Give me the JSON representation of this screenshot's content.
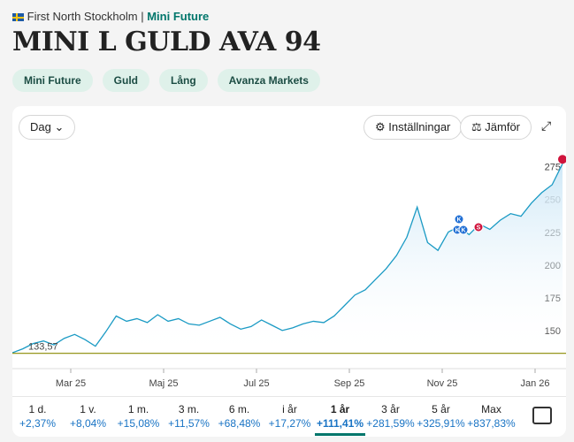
{
  "header": {
    "exchange": "First North Stockholm",
    "category": "Mini Future"
  },
  "title": "MINI L GULD AVA 94",
  "tags": [
    "Mini Future",
    "Guld",
    "Lång",
    "Avanza Markets"
  ],
  "toolbar": {
    "period": "Dag",
    "settings": "Inställningar",
    "compare": "Jämför"
  },
  "chart_data": {
    "type": "line",
    "color": "#1a9ac4",
    "values": [
      134,
      137,
      141,
      143,
      140,
      145,
      148,
      144,
      139,
      150,
      162,
      158,
      160,
      157,
      163,
      158,
      160,
      156,
      155,
      158,
      161,
      156,
      152,
      154,
      159,
      155,
      151,
      153,
      156,
      158,
      157,
      162,
      170,
      178,
      182,
      190,
      198,
      208,
      222,
      245,
      218,
      212,
      226,
      230,
      224,
      232,
      228,
      235,
      240,
      238,
      248,
      256,
      262,
      278
    ],
    "ylim": [
      130,
      295
    ],
    "yticks": [
      150,
      175,
      200,
      225,
      250,
      275
    ],
    "xtick_labels": [
      "Mar 25",
      "Maj 25",
      "Jul 25",
      "Sep 25",
      "Nov 25",
      "Jan 26"
    ],
    "baseline": {
      "value": 133.57,
      "label": "133,57"
    },
    "trade_markers": [
      "K",
      "K",
      "K",
      "S"
    ]
  },
  "periods": [
    {
      "label": "1 d.",
      "change": "+2,37%"
    },
    {
      "label": "1 v.",
      "change": "+8,04%"
    },
    {
      "label": "1 m.",
      "change": "+15,08%"
    },
    {
      "label": "3 m.",
      "change": "+11,57%"
    },
    {
      "label": "6 m.",
      "change": "+68,48%"
    },
    {
      "label": "i år",
      "change": "+17,27%"
    },
    {
      "label": "1 år",
      "change": "+111,41%",
      "selected": true
    },
    {
      "label": "3 år",
      "change": "+281,59%"
    },
    {
      "label": "5 år",
      "change": "+325,91%"
    },
    {
      "label": "Max",
      "change": "+837,83%"
    }
  ]
}
